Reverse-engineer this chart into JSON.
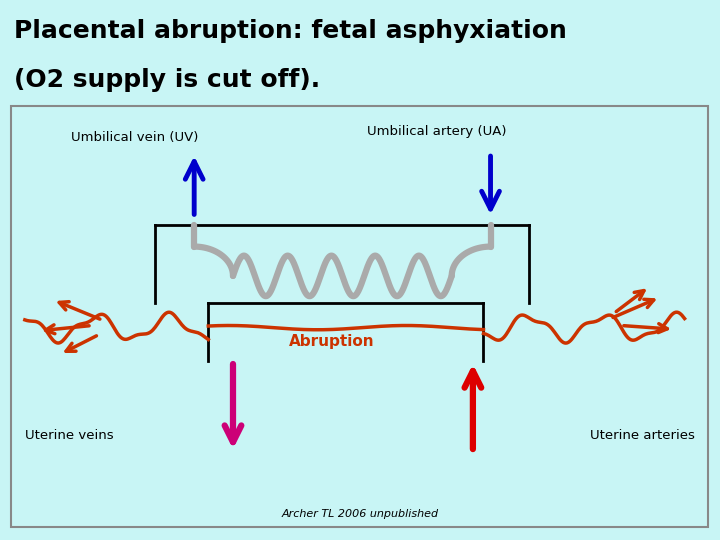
{
  "title_line1": "Placental abruption: fetal asphyxiation",
  "title_line2": "(O2 supply is cut off).",
  "bg_color": "#c8f5f5",
  "border_color": "#888888",
  "label_uv": "Umbilical vein (UV)",
  "label_ua": "Umbilical artery (UA)",
  "label_uterine_veins": "Uterine veins",
  "label_uterine_arteries": "Uterine arteries",
  "label_abruption": "Abruption",
  "label_credit": "Archer TL 2006 unpublished",
  "blue_arrow_color": "#0000cc",
  "magenta_arrow_color": "#cc0077",
  "red_arrow_color": "#dd0000",
  "gray_cord_color": "#aaaaaa",
  "abruption_color": "#cc3300"
}
